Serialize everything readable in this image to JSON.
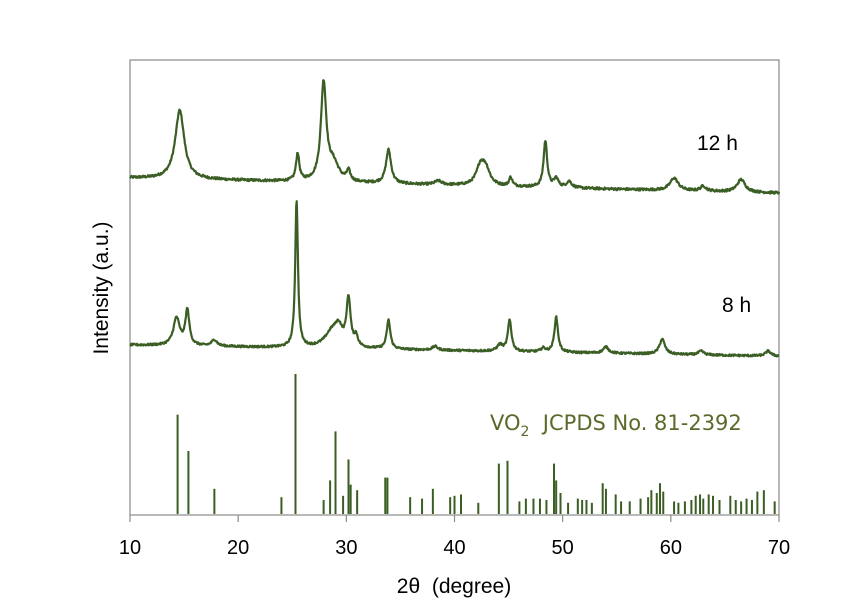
{
  "chart_data": {
    "type": "line",
    "xlabel": "2θ  (degree)",
    "ylabel": "Intensity (a.u.)",
    "xlim": [
      10,
      70
    ],
    "xticks": [
      10,
      20,
      30,
      40,
      50,
      60,
      70
    ],
    "yticks_shown": false,
    "grid": false,
    "line_color": "#3a5e24",
    "frame_color": "#8a8a8a",
    "series": [
      {
        "name": "12 h",
        "baseline": 0.86,
        "slope": -0.002,
        "noise": 0.012,
        "peaks": [
          {
            "x": 14.6,
            "h": 0.55,
            "w": 0.5
          },
          {
            "x": 25.5,
            "h": 0.22,
            "w": 0.18
          },
          {
            "x": 27.9,
            "h": 0.78,
            "w": 0.3
          },
          {
            "x": 28.8,
            "h": 0.14,
            "w": 0.6
          },
          {
            "x": 30.2,
            "h": 0.08,
            "w": 0.2
          },
          {
            "x": 33.9,
            "h": 0.27,
            "w": 0.28
          },
          {
            "x": 38.5,
            "h": 0.03,
            "w": 0.4
          },
          {
            "x": 42.4,
            "h": 0.15,
            "w": 0.45
          },
          {
            "x": 42.9,
            "h": 0.12,
            "w": 0.45
          },
          {
            "x": 45.2,
            "h": 0.07,
            "w": 0.18
          },
          {
            "x": 48.4,
            "h": 0.37,
            "w": 0.2
          },
          {
            "x": 49.4,
            "h": 0.07,
            "w": 0.25
          },
          {
            "x": 50.6,
            "h": 0.05,
            "w": 0.3
          },
          {
            "x": 60.3,
            "h": 0.1,
            "w": 0.45
          },
          {
            "x": 63.0,
            "h": 0.04,
            "w": 0.3
          },
          {
            "x": 66.5,
            "h": 0.1,
            "w": 0.45
          }
        ]
      },
      {
        "name": "8 h",
        "baseline": 0.0,
        "slope": -0.0015,
        "noise": 0.01,
        "peaks": [
          {
            "x": 14.3,
            "h": 0.22,
            "w": 0.35
          },
          {
            "x": 15.3,
            "h": 0.28,
            "w": 0.22
          },
          {
            "x": 17.8,
            "h": 0.05,
            "w": 0.3
          },
          {
            "x": 25.4,
            "h": 1.18,
            "w": 0.15
          },
          {
            "x": 28.7,
            "h": 0.13,
            "w": 0.8
          },
          {
            "x": 29.3,
            "h": 0.12,
            "w": 0.4
          },
          {
            "x": 30.2,
            "h": 0.38,
            "w": 0.22
          },
          {
            "x": 30.9,
            "h": 0.08,
            "w": 0.2
          },
          {
            "x": 33.9,
            "h": 0.23,
            "w": 0.2
          },
          {
            "x": 38.2,
            "h": 0.03,
            "w": 0.3
          },
          {
            "x": 44.2,
            "h": 0.05,
            "w": 0.3
          },
          {
            "x": 45.1,
            "h": 0.25,
            "w": 0.2
          },
          {
            "x": 48.2,
            "h": 0.03,
            "w": 0.25
          },
          {
            "x": 49.4,
            "h": 0.28,
            "w": 0.2
          },
          {
            "x": 54.0,
            "h": 0.05,
            "w": 0.3
          },
          {
            "x": 59.2,
            "h": 0.12,
            "w": 0.3
          },
          {
            "x": 62.8,
            "h": 0.03,
            "w": 0.3
          },
          {
            "x": 69.0,
            "h": 0.04,
            "w": 0.3
          }
        ]
      }
    ],
    "reference": {
      "name": "VO2  JCPDS No. 81-2392",
      "label_main": "VO",
      "label_sub": "2",
      "label_rest": "  JCPDS No. 81-2392",
      "label_color": "#5a6a2a",
      "sticks": [
        {
          "x": 14.4,
          "i": 0.71
        },
        {
          "x": 15.4,
          "i": 0.45
        },
        {
          "x": 17.8,
          "i": 0.18
        },
        {
          "x": 24.0,
          "i": 0.12
        },
        {
          "x": 25.3,
          "i": 1.0
        },
        {
          "x": 27.9,
          "i": 0.1
        },
        {
          "x": 28.5,
          "i": 0.24
        },
        {
          "x": 29.0,
          "i": 0.59
        },
        {
          "x": 29.7,
          "i": 0.13
        },
        {
          "x": 30.2,
          "i": 0.39
        },
        {
          "x": 30.4,
          "i": 0.21
        },
        {
          "x": 31.0,
          "i": 0.17
        },
        {
          "x": 33.6,
          "i": 0.26
        },
        {
          "x": 33.8,
          "i": 0.26
        },
        {
          "x": 35.9,
          "i": 0.12
        },
        {
          "x": 37.0,
          "i": 0.11
        },
        {
          "x": 38.0,
          "i": 0.18
        },
        {
          "x": 39.6,
          "i": 0.12
        },
        {
          "x": 40.0,
          "i": 0.13
        },
        {
          "x": 40.6,
          "i": 0.14
        },
        {
          "x": 42.2,
          "i": 0.08
        },
        {
          "x": 44.1,
          "i": 0.36
        },
        {
          "x": 44.9,
          "i": 0.38
        },
        {
          "x": 46.0,
          "i": 0.09
        },
        {
          "x": 46.6,
          "i": 0.11
        },
        {
          "x": 47.3,
          "i": 0.11
        },
        {
          "x": 47.9,
          "i": 0.11
        },
        {
          "x": 48.5,
          "i": 0.1
        },
        {
          "x": 49.2,
          "i": 0.36
        },
        {
          "x": 49.4,
          "i": 0.24
        },
        {
          "x": 49.8,
          "i": 0.15
        },
        {
          "x": 50.5,
          "i": 0.08
        },
        {
          "x": 51.4,
          "i": 0.11
        },
        {
          "x": 51.8,
          "i": 0.1
        },
        {
          "x": 52.2,
          "i": 0.1
        },
        {
          "x": 52.7,
          "i": 0.08
        },
        {
          "x": 53.7,
          "i": 0.22
        },
        {
          "x": 54.0,
          "i": 0.18
        },
        {
          "x": 54.9,
          "i": 0.14
        },
        {
          "x": 55.4,
          "i": 0.09
        },
        {
          "x": 56.2,
          "i": 0.09
        },
        {
          "x": 57.2,
          "i": 0.11
        },
        {
          "x": 57.9,
          "i": 0.12
        },
        {
          "x": 58.2,
          "i": 0.17
        },
        {
          "x": 58.7,
          "i": 0.15
        },
        {
          "x": 59.0,
          "i": 0.22
        },
        {
          "x": 59.3,
          "i": 0.16
        },
        {
          "x": 60.3,
          "i": 0.09
        },
        {
          "x": 60.7,
          "i": 0.08
        },
        {
          "x": 61.3,
          "i": 0.09
        },
        {
          "x": 61.9,
          "i": 0.1
        },
        {
          "x": 62.3,
          "i": 0.13
        },
        {
          "x": 62.7,
          "i": 0.14
        },
        {
          "x": 63.0,
          "i": 0.11
        },
        {
          "x": 63.5,
          "i": 0.14
        },
        {
          "x": 63.9,
          "i": 0.13
        },
        {
          "x": 64.5,
          "i": 0.1
        },
        {
          "x": 65.5,
          "i": 0.13
        },
        {
          "x": 66.0,
          "i": 0.1
        },
        {
          "x": 66.5,
          "i": 0.09
        },
        {
          "x": 67.0,
          "i": 0.11
        },
        {
          "x": 67.5,
          "i": 0.1
        },
        {
          "x": 68.0,
          "i": 0.16
        },
        {
          "x": 68.6,
          "i": 0.17
        },
        {
          "x": 69.6,
          "i": 0.09
        }
      ]
    }
  }
}
